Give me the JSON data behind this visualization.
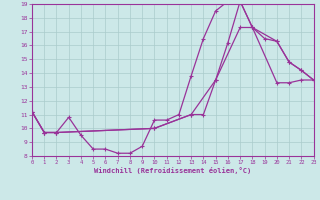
{
  "xlabel": "Windchill (Refroidissement éolien,°C)",
  "xlim": [
    0,
    23
  ],
  "ylim": [
    8,
    19
  ],
  "xticks": [
    0,
    1,
    2,
    3,
    4,
    5,
    6,
    7,
    8,
    9,
    10,
    11,
    12,
    13,
    14,
    15,
    16,
    17,
    18,
    19,
    20,
    21,
    22,
    23
  ],
  "yticks": [
    8,
    9,
    10,
    11,
    12,
    13,
    14,
    15,
    16,
    17,
    18,
    19
  ],
  "bg_color": "#cce8e8",
  "grid_color": "#aacccc",
  "line_color": "#993399",
  "curve1_x": [
    0,
    1,
    2,
    3,
    4,
    5,
    6,
    7,
    8,
    9,
    10,
    11,
    12,
    13,
    14,
    15,
    16,
    17,
    18,
    20,
    21,
    22,
    23
  ],
  "curve1_y": [
    11.2,
    9.7,
    9.7,
    10.8,
    9.5,
    8.5,
    8.5,
    8.2,
    8.2,
    8.7,
    10.6,
    10.6,
    11.0,
    13.8,
    16.5,
    18.5,
    19.2,
    19.2,
    17.3,
    16.3,
    14.8,
    14.2,
    13.5
  ],
  "curve2_x": [
    0,
    1,
    2,
    10,
    13,
    14,
    15,
    16,
    17,
    18,
    20,
    21,
    22,
    23
  ],
  "curve2_y": [
    11.2,
    9.7,
    9.7,
    10.0,
    11.0,
    11.0,
    13.5,
    16.2,
    19.2,
    17.3,
    13.3,
    13.3,
    13.5,
    13.5
  ],
  "curve3_x": [
    0,
    1,
    2,
    10,
    13,
    15,
    17,
    18,
    19,
    20,
    21,
    22,
    23
  ],
  "curve3_y": [
    11.2,
    9.7,
    9.7,
    10.0,
    11.0,
    13.5,
    17.3,
    17.3,
    16.5,
    16.3,
    14.8,
    14.2,
    13.5
  ]
}
